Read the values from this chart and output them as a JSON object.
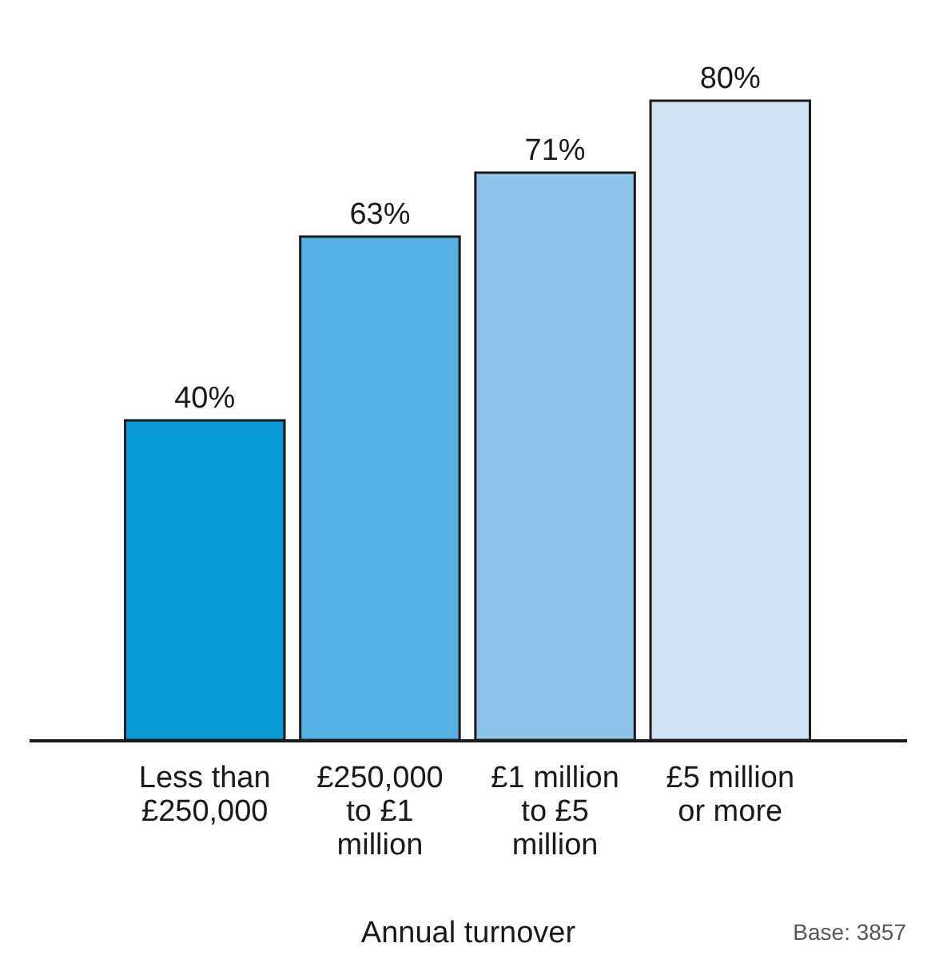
{
  "chart_data": {
    "type": "bar",
    "categories": [
      "Less than £250,000",
      "£250,000 to £1 million",
      "£1 million to £5 million",
      "£5 million or more"
    ],
    "values": [
      40,
      63,
      71,
      80
    ],
    "colors": [
      "#0a9bd9",
      "#56b0e4",
      "#8ec4ea",
      "#cfe3f4"
    ],
    "value_labels": [
      "40%",
      "63%",
      "71%",
      "80%"
    ],
    "xlabel": "Annual turnover",
    "annotations": [
      "Base: 3857"
    ],
    "grid": false
  }
}
